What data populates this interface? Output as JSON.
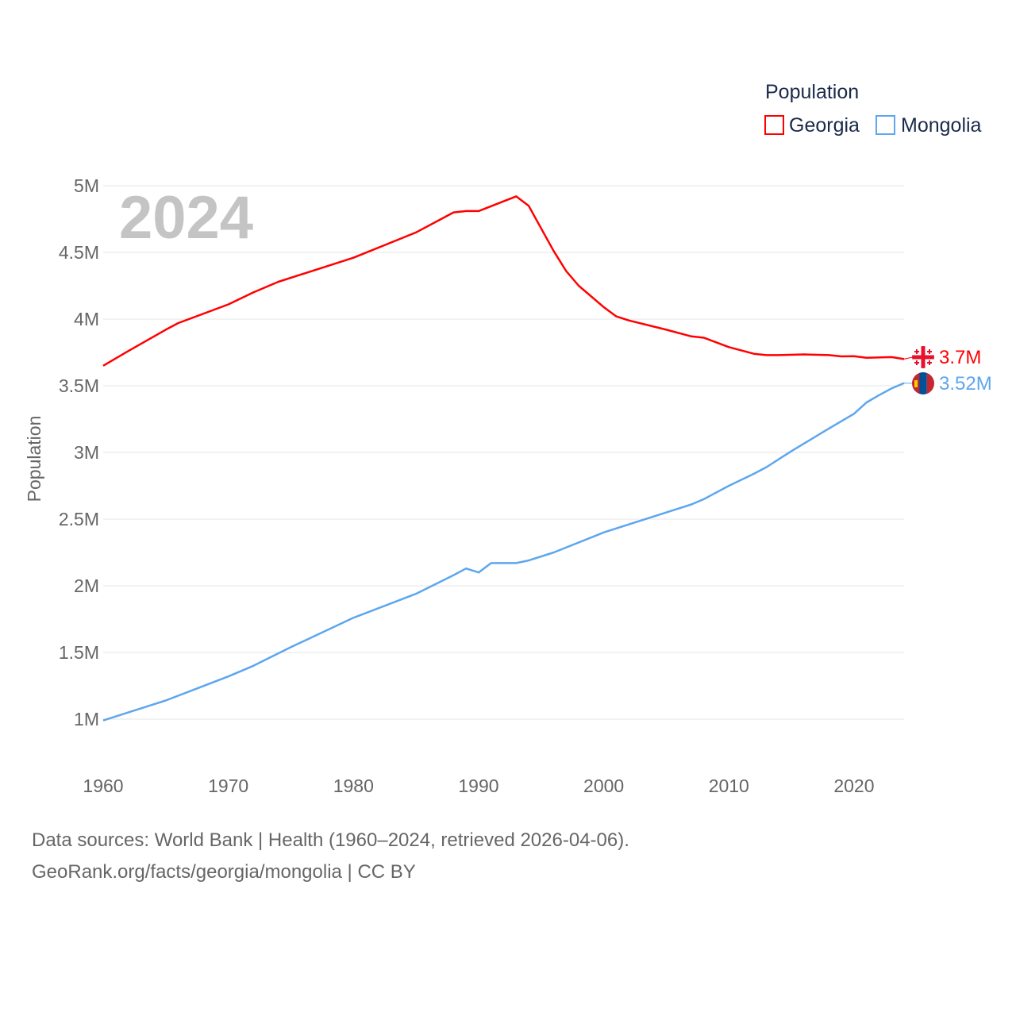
{
  "chart_data": {
    "type": "line",
    "title": "",
    "xlabel": "",
    "ylabel": "Population",
    "xlim": [
      1960,
      2024
    ],
    "ylim": [
      1000000,
      5000000
    ],
    "x_ticks": [
      "1960",
      "1970",
      "1980",
      "1990",
      "2000",
      "2010",
      "2020"
    ],
    "y_ticks": [
      {
        "value": 1000000,
        "label": "1M"
      },
      {
        "value": 1500000,
        "label": "1.5M"
      },
      {
        "value": 2000000,
        "label": "2M"
      },
      {
        "value": 2500000,
        "label": "2.5M"
      },
      {
        "value": 3000000,
        "label": "3M"
      },
      {
        "value": 3500000,
        "label": "3.5M"
      },
      {
        "value": 4000000,
        "label": "4M"
      },
      {
        "value": 4500000,
        "label": "4.5M"
      },
      {
        "value": 5000000,
        "label": "5M"
      }
    ],
    "grid": true,
    "legend": {
      "title": "Population",
      "placement": "top-right"
    },
    "year_label": "2024",
    "series": [
      {
        "name": "Georgia",
        "color": "#ff0000",
        "end_label": "3.7M",
        "flag": "georgia-flag",
        "x": [
          1960,
          1962,
          1965,
          1966,
          1970,
          1972,
          1974,
          1978,
          1980,
          1985,
          1987,
          1988,
          1989,
          1990,
          1993,
          1994,
          1995,
          1996,
          1997,
          1998,
          2000,
          2001,
          2002,
          2005,
          2007,
          2008,
          2010,
          2012,
          2013,
          2014,
          2016,
          2018,
          2019,
          2020,
          2021,
          2023,
          2024
        ],
        "y": [
          3650000,
          3760000,
          3920000,
          3970000,
          4110000,
          4200000,
          4280000,
          4400000,
          4460000,
          4650000,
          4750000,
          4800000,
          4810000,
          4810000,
          4920000,
          4850000,
          4680000,
          4510000,
          4360000,
          4250000,
          4090000,
          4020000,
          3990000,
          3920000,
          3870000,
          3860000,
          3790000,
          3740000,
          3730000,
          3730000,
          3735000,
          3730000,
          3720000,
          3722000,
          3710000,
          3715000,
          3700000
        ]
      },
      {
        "name": "Mongolia",
        "color": "#5ea6ee",
        "end_label": "3.52M",
        "flag": "mongolia-flag",
        "x": [
          1960,
          1962,
          1965,
          1970,
          1972,
          1975,
          1980,
          1985,
          1988,
          1989,
          1990,
          1991,
          1993,
          1994,
          1996,
          2000,
          2005,
          2007,
          2008,
          2010,
          2012,
          2013,
          2015,
          2018,
          2020,
          2021,
          2022,
          2023,
          2024
        ],
        "y": [
          990000,
          1050000,
          1140000,
          1320000,
          1400000,
          1540000,
          1760000,
          1940000,
          2080000,
          2130000,
          2100000,
          2170000,
          2170000,
          2190000,
          2250000,
          2400000,
          2550000,
          2610000,
          2650000,
          2750000,
          2840000,
          2890000,
          3010000,
          3180000,
          3290000,
          3375000,
          3430000,
          3480000,
          3520000
        ]
      }
    ]
  },
  "footer": {
    "line1": "Data sources: World Bank | Health (1960–2024, retrieved 2026-04-06).",
    "line2": "GeoRank.org/facts/georgia/mongolia | CC BY"
  }
}
